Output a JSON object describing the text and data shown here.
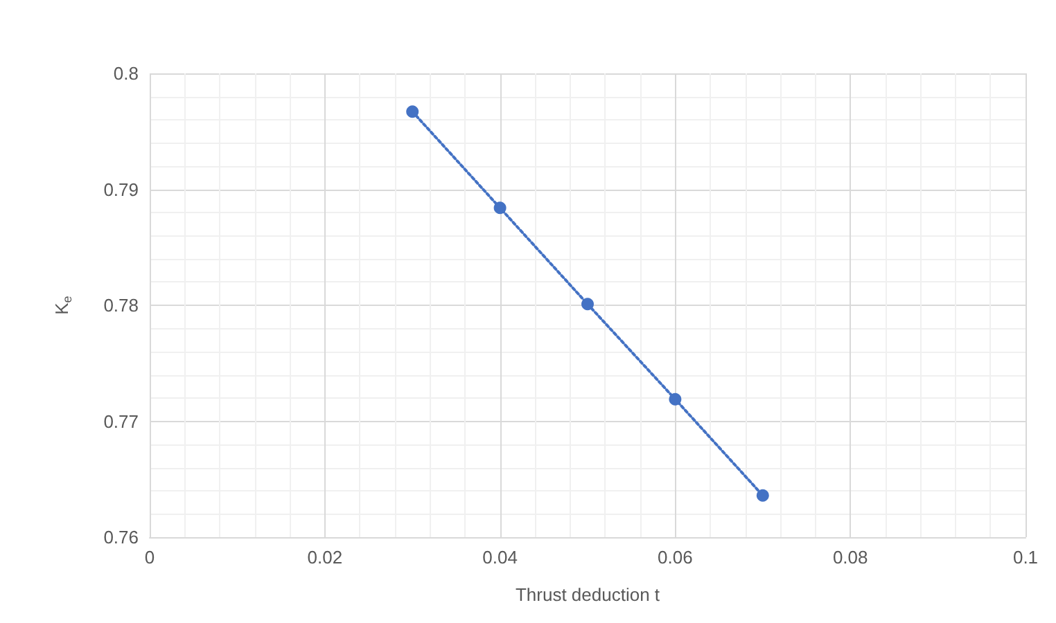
{
  "chart_data": {
    "type": "line",
    "xlabel": "Thrust deduction t",
    "ylabel": "K$_{e}$",
    "x": [
      0.03,
      0.04,
      0.05,
      0.06,
      0.07
    ],
    "series": [
      {
        "color": "#4472c4",
        "values": [
          0.7967,
          0.7884,
          0.7801,
          0.7719,
          0.7636
        ]
      }
    ],
    "xlim": [
      0,
      0.1
    ],
    "xticks": [
      0,
      0.02,
      0.04,
      0.06,
      0.08,
      0.1
    ],
    "ylim": [
      0.76,
      0.8
    ],
    "yticks": [
      0.76,
      0.77,
      0.78,
      0.79,
      0.8
    ],
    "grid": true,
    "marker": "circle",
    "line_style": "dotted"
  }
}
